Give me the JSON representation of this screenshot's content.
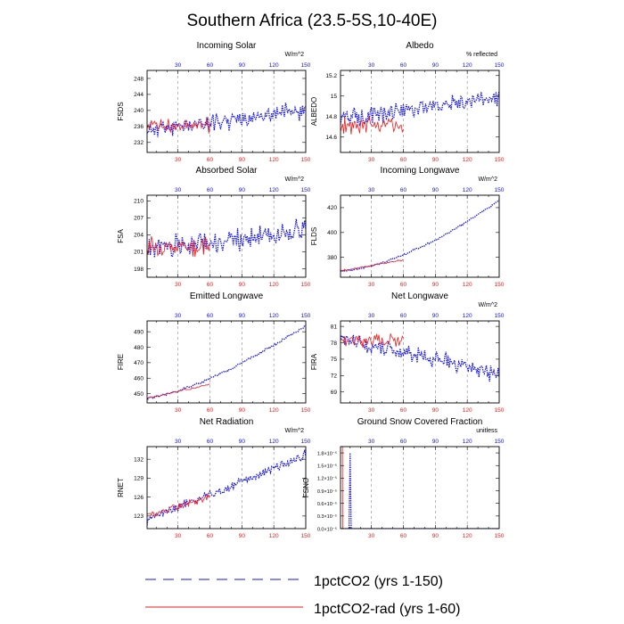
{
  "figure": {
    "title": "Southern Africa (23.5-5S,10-40E)",
    "colors": {
      "run_150": "#1010ee",
      "run_60": "#ee1a1a",
      "grid": "#888888"
    }
  },
  "legend": {
    "placement": "bottom",
    "items": [
      {
        "label": "1pctCO2 (yrs 1-150)",
        "style": "dashed",
        "color": "#1010ee"
      },
      {
        "label": "1pctCO2-rad (yrs 1-60)",
        "style": "solid",
        "color": "#ee1a1a"
      }
    ]
  },
  "chart_data": [
    {
      "type": "line",
      "title": "Incoming Solar",
      "ylabel": "FSDS",
      "units": "W/m^2",
      "xlim": [
        1,
        150
      ],
      "xticks": [
        30,
        60,
        90,
        120,
        150
      ],
      "yticks": [
        232,
        236,
        240,
        244,
        248
      ],
      "ylim": [
        229.5,
        250
      ],
      "series": [
        {
          "run": "1pctCO2",
          "color": "#1010ee",
          "style": "dotted",
          "years": [
            1,
            150
          ],
          "start": 235,
          "end": 240,
          "noise": 3,
          "seed": 11
        },
        {
          "run": "1pctCO2-rad",
          "color": "#ee1a1a",
          "style": "solid",
          "years": [
            1,
            60
          ],
          "start": 236,
          "end": 236.5,
          "noise": 2.5,
          "seed": 12
        }
      ]
    },
    {
      "type": "line",
      "title": "Albedo",
      "ylabel": "ALBEDO",
      "units": "% reflected",
      "xlim": [
        1,
        150
      ],
      "xticks": [
        30,
        60,
        90,
        120,
        150
      ],
      "yticks": [
        14.6,
        14.8,
        15.0,
        15.2
      ],
      "ylim": [
        14.45,
        15.25
      ],
      "series": [
        {
          "run": "1pctCO2",
          "color": "#1010ee",
          "style": "dotted",
          "years": [
            1,
            150
          ],
          "start": 14.78,
          "end": 14.98,
          "noise": 0.12,
          "seed": 21
        },
        {
          "run": "1pctCO2-rad",
          "color": "#ee1a1a",
          "style": "solid",
          "years": [
            1,
            60
          ],
          "start": 14.72,
          "end": 14.72,
          "noise": 0.11,
          "seed": 22
        }
      ]
    },
    {
      "type": "line",
      "title": "Absorbed Solar",
      "ylabel": "FSA",
      "units": "W/m^2",
      "xlim": [
        1,
        150
      ],
      "xticks": [
        30,
        60,
        90,
        120,
        150
      ],
      "yticks": [
        198,
        201,
        204,
        207,
        210
      ],
      "ylim": [
        196.5,
        211
      ],
      "series": [
        {
          "run": "1pctCO2",
          "color": "#1010ee",
          "style": "dotted",
          "years": [
            1,
            150
          ],
          "start": 201.5,
          "end": 204.5,
          "noise": 2.8,
          "seed": 31
        },
        {
          "run": "1pctCO2-rad",
          "color": "#ee1a1a",
          "style": "solid",
          "years": [
            1,
            60
          ],
          "start": 202,
          "end": 202,
          "noise": 2.2,
          "seed": 32
        }
      ]
    },
    {
      "type": "line",
      "title": "Incoming Longwave",
      "ylabel": "FLDS",
      "units": "W/m^2",
      "xlim": [
        1,
        150
      ],
      "xticks": [
        30,
        60,
        90,
        120,
        150
      ],
      "yticks": [
        380,
        400,
        420
      ],
      "ylim": [
        364,
        430
      ],
      "series": [
        {
          "run": "1pctCO2",
          "color": "#1010ee",
          "style": "dotted",
          "years": [
            1,
            150
          ],
          "start": 369,
          "end": 426,
          "noise": 1.2,
          "seed": 41,
          "curve": 1.6
        },
        {
          "run": "1pctCO2-rad",
          "color": "#ee1a1a",
          "style": "solid",
          "years": [
            1,
            60
          ],
          "start": 369,
          "end": 378,
          "noise": 1.0,
          "seed": 42
        }
      ]
    },
    {
      "type": "line",
      "title": "Emitted Longwave",
      "ylabel": "FIRE",
      "units": "",
      "xlim": [
        1,
        150
      ],
      "xticks": [
        30,
        60,
        90,
        120,
        150
      ],
      "yticks": [
        450,
        460,
        470,
        480,
        490
      ],
      "ylim": [
        444,
        497
      ],
      "series": [
        {
          "run": "1pctCO2",
          "color": "#1010ee",
          "style": "dotted",
          "years": [
            1,
            150
          ],
          "start": 447,
          "end": 494,
          "noise": 1.2,
          "seed": 51,
          "curve": 1.4
        },
        {
          "run": "1pctCO2-rad",
          "color": "#ee1a1a",
          "style": "solid",
          "years": [
            1,
            60
          ],
          "start": 447,
          "end": 456,
          "noise": 1.0,
          "seed": 52
        }
      ]
    },
    {
      "type": "line",
      "title": "Net Longwave",
      "ylabel": "FIRA",
      "units": "W/m^2",
      "xlim": [
        1,
        150
      ],
      "xticks": [
        30,
        60,
        90,
        120,
        150
      ],
      "yticks": [
        69.0,
        72.0,
        75.0,
        78.0,
        81.0
      ],
      "ylim": [
        67,
        82
      ],
      "series": [
        {
          "run": "1pctCO2",
          "color": "#1010ee",
          "style": "dotted",
          "years": [
            1,
            150
          ],
          "start": 78.5,
          "end": 72.5,
          "noise": 2.2,
          "seed": 61
        },
        {
          "run": "1pctCO2-rad",
          "color": "#ee1a1a",
          "style": "solid",
          "years": [
            1,
            60
          ],
          "start": 78.5,
          "end": 78.5,
          "noise": 1.6,
          "seed": 62
        }
      ]
    },
    {
      "type": "line",
      "title": "Net Radiation",
      "ylabel": "RNET",
      "units": "W/m^2",
      "xlim": [
        1,
        150
      ],
      "xticks": [
        30,
        60,
        90,
        120,
        150
      ],
      "yticks": [
        123,
        126,
        129,
        132
      ],
      "ylim": [
        121,
        134
      ],
      "series": [
        {
          "run": "1pctCO2",
          "color": "#1010ee",
          "style": "dotted",
          "years": [
            1,
            150
          ],
          "start": 122.5,
          "end": 132.5,
          "noise": 1.0,
          "seed": 71
        },
        {
          "run": "1pctCO2-rad",
          "color": "#ee1a1a",
          "style": "solid",
          "years": [
            1,
            60
          ],
          "start": 123,
          "end": 126,
          "noise": 0.9,
          "seed": 72
        }
      ]
    },
    {
      "type": "line",
      "title": "Ground Snow Covered Fraction",
      "ylabel": "FSNO",
      "units": "unitless",
      "xlim": [
        1,
        150
      ],
      "xticks": [
        30,
        60,
        90,
        120,
        150
      ],
      "yticks": [
        0.0,
        0.3,
        0.6,
        0.9,
        1.2,
        1.5,
        1.8
      ],
      "yticklabels": [
        "0.0×10⁻⁵",
        "0.3×10⁻⁵",
        "0.6×10⁻⁵",
        "0.9×10⁻⁵",
        "1.2×10⁻⁵",
        "1.5×10⁻⁵",
        "1.8×10⁻⁵"
      ],
      "ylim": [
        0,
        1.95
      ],
      "series": [
        {
          "run": "1pctCO2",
          "color": "#1010ee",
          "style": "dotted",
          "x": [
            1,
            8,
            9,
            10,
            11,
            12,
            150
          ],
          "y": [
            0,
            0,
            0,
            1.8,
            0,
            0,
            0
          ]
        },
        {
          "run": "1pctCO2-rad",
          "color": "#ee1a1a",
          "style": "solid",
          "x": [
            1,
            1.2,
            2.8,
            3
          ],
          "y": [
            1.95,
            1.95,
            1.95,
            0
          ]
        }
      ]
    }
  ]
}
